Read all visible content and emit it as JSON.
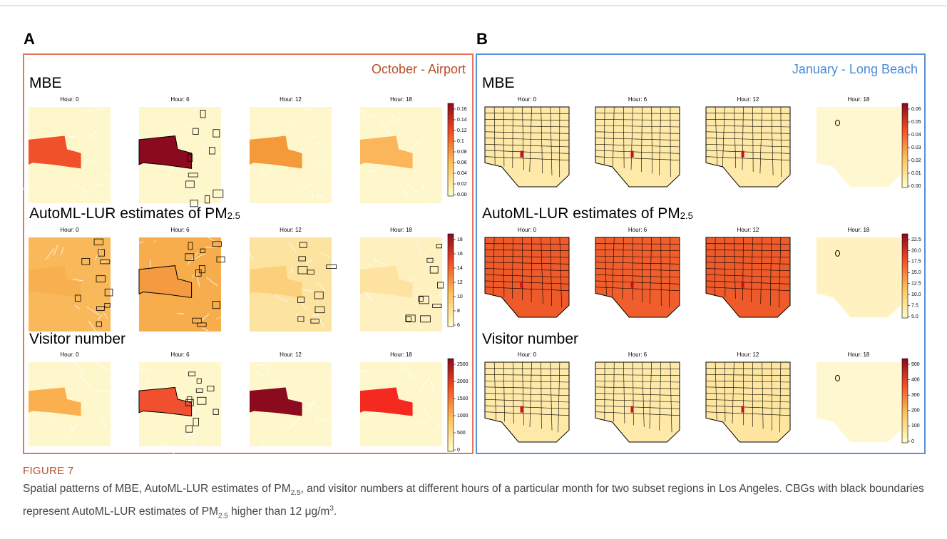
{
  "figure": {
    "panels": [
      {
        "label": "A",
        "title": "October - Airport",
        "rows": [
          {
            "title": {
              "text": "MBE"
            },
            "hours": [
              "Hour: 0",
              "Hour: 6",
              "Hour: 12",
              "Hour: 18"
            ],
            "colorbar": [
              0.16,
              0.14,
              0.12,
              0.1,
              0.08,
              0.06,
              0.04,
              0.02,
              {
                "value": 0,
                "label": "0.00"
              }
            ]
          },
          {
            "title": {
              "text": "AutoML-LUR estimates of PM",
              "sub": "2.5"
            },
            "hours": [
              "Hour: 0",
              "Hour: 6",
              "Hour: 12",
              "Hour: 18"
            ],
            "colorbar": [
              18,
              16,
              14,
              12,
              10,
              8,
              6
            ]
          },
          {
            "title": {
              "text": "Visitor number"
            },
            "hours": [
              "Hour: 0",
              "Hour: 6",
              "Hour: 12",
              "Hour: 18"
            ],
            "colorbar": [
              2500,
              2000,
              1500,
              1000,
              500,
              0
            ]
          }
        ]
      },
      {
        "label": "B",
        "title": "January - Long Beach",
        "rows": [
          {
            "title": {
              "text": "MBE"
            },
            "hours": [
              "Hour: 0",
              "Hour: 6",
              "Hour: 12",
              "Hour: 18"
            ],
            "colorbar": [
              0.06,
              0.05,
              0.04,
              0.03,
              0.02,
              0.01,
              {
                "value": 0,
                "label": "0.00"
              }
            ]
          },
          {
            "title": {
              "text": "AutoML-LUR estimates of PM",
              "sub": "2.5"
            },
            "hours": [
              "Hour: 0",
              "Hour: 6",
              "Hour: 12",
              "Hour: 18"
            ],
            "colorbar": [
              22.5,
              {
                "value": 20,
                "label": "20.0"
              },
              17.5,
              {
                "value": 15,
                "label": "15.0"
              },
              12.5,
              {
                "value": 10,
                "label": "10.0"
              },
              7.5,
              {
                "value": 5,
                "label": "5.0"
              }
            ]
          },
          {
            "title": {
              "text": "Visitor number"
            },
            "hours": [
              "Hour: 0",
              "Hour: 6",
              "Hour: 12",
              "Hour: 18"
            ],
            "colorbar": [
              500,
              400,
              300,
              200,
              100,
              0
            ]
          }
        ]
      }
    ],
    "caption": {
      "label": "FIGURE 7",
      "parts": [
        {
          "text": "Spatial patterns of MBE, AutoML-LUR estimates of PM"
        },
        {
          "sub": "2.5"
        },
        {
          "text": ", and visitor numbers at different hours of a particular month for two subset regions in Los Angeles. CBGs with black boundaries represent AutoML-LUR estimates of PM"
        },
        {
          "sub": "2.5"
        },
        {
          "text": " higher than 12 μg/m"
        },
        {
          "sup": "3"
        },
        {
          "text": "."
        }
      ]
    }
  }
}
